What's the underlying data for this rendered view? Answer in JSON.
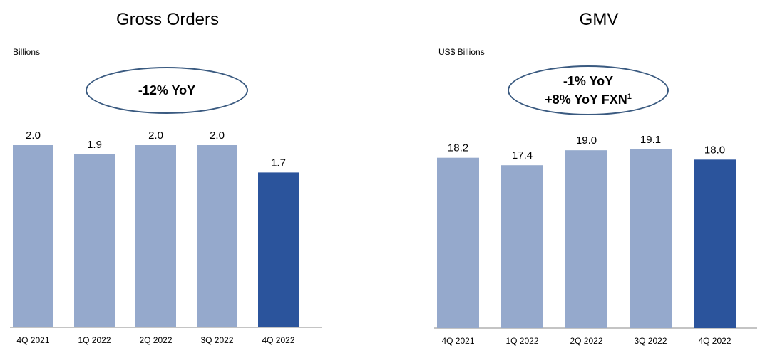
{
  "colors": {
    "bar": "#95a9cc",
    "bar_highlight": "#2b549c",
    "axis": "#888888"
  },
  "chart_data": [
    {
      "type": "bar",
      "title": "Gross Orders",
      "ylabel": "Billions",
      "annotation": {
        "lines": [
          "-12% YoY"
        ],
        "superscript": ""
      },
      "categories": [
        "4Q 2021",
        "1Q 2022",
        "2Q 2022",
        "3Q 2022",
        "4Q 2022"
      ],
      "values": [
        2.0,
        1.9,
        2.0,
        2.0,
        1.7
      ],
      "value_labels": [
        "2.0",
        "1.9",
        "2.0",
        "2.0",
        "1.7"
      ],
      "highlight_index": 4,
      "ylim": [
        0,
        2.5
      ]
    },
    {
      "type": "bar",
      "title": "GMV",
      "ylabel": "US$ Billions",
      "annotation": {
        "lines": [
          "-1% YoY",
          "+8% YoY FXN"
        ],
        "superscript": "1"
      },
      "categories": [
        "4Q 2021",
        "1Q 2022",
        "2Q 2022",
        "3Q 2022",
        "4Q 2022"
      ],
      "values": [
        18.2,
        17.4,
        19.0,
        19.1,
        18.0
      ],
      "value_labels": [
        "18.2",
        "17.4",
        "19.0",
        "19.1",
        "18.0"
      ],
      "highlight_index": 4,
      "ylim": [
        0,
        23.5
      ]
    }
  ]
}
